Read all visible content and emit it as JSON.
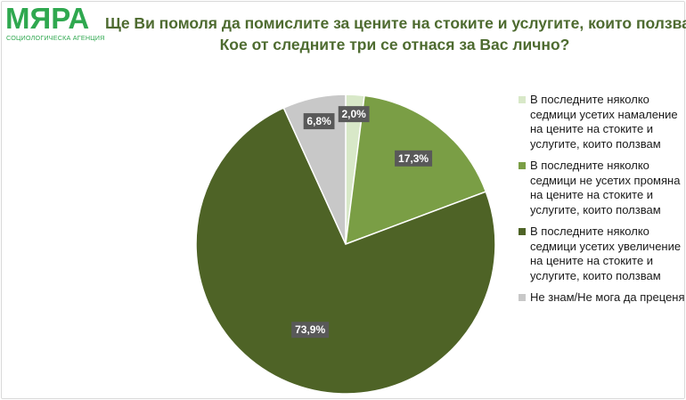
{
  "logo": {
    "word": "МЯРА",
    "subtitle": "СОЦИОЛОГИЧЕСКА АГЕНЦИЯ"
  },
  "title": {
    "line1": "Ще Ви помоля да помислите за цените на стоките и услугите, които ползвате.",
    "line2": "Кое от следните три се отнася за Вас лично?"
  },
  "chart_data": {
    "type": "pie",
    "start_angle_deg": 0,
    "direction": "clockwise",
    "slices": [
      {
        "label": "В последните няколко седмици усетих намаление на цените на стоките и услугите, които ползвам",
        "value": 2.0,
        "value_label": "2,0%",
        "color": "#d8e8c8"
      },
      {
        "label": "В последните няколко седмици не усетих промяна на цените на стоките и услугите, които ползвам",
        "value": 17.3,
        "value_label": "17,3%",
        "color": "#7a9e45"
      },
      {
        "label": "В последните няколко седмици усетих увеличение на цените на стоките и услугите, които ползвам",
        "value": 73.9,
        "value_label": "73,9%",
        "color": "#4e6326"
      },
      {
        "label": "Не знам/Не мога да преценя",
        "value": 6.8,
        "value_label": "6,8%",
        "color": "#c8c8c8"
      }
    ],
    "legend_position": "right",
    "label_box_color": "#595959"
  }
}
